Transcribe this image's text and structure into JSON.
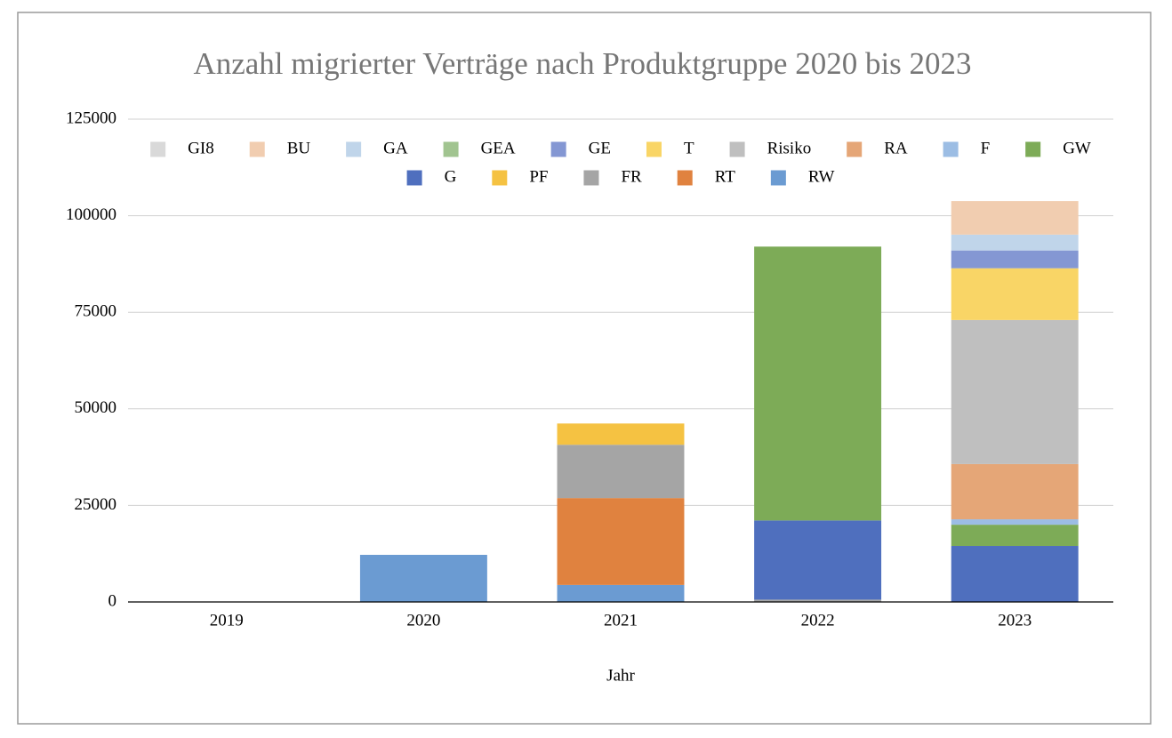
{
  "chart_data": {
    "type": "stacked_bar",
    "title": "Anzahl migrierter Verträge nach Produktgruppe 2020 bis 2023",
    "x_label": "Jahr",
    "categories": [
      "2019",
      "2020",
      "2021",
      "2022",
      "2023"
    ],
    "ylim": [
      0,
      125000
    ],
    "yticks": [
      0,
      25000,
      50000,
      75000,
      100000,
      125000
    ],
    "grid": true,
    "legend": "top",
    "series": [
      {
        "name": "GI8",
        "color": "#d9d9d9",
        "values": [
          0,
          0,
          0,
          0,
          0
        ]
      },
      {
        "name": "BU",
        "color": "#f1cdb0",
        "values": [
          0,
          0,
          0,
          0,
          8700
        ]
      },
      {
        "name": "GA",
        "color": "#c0d5ea",
        "values": [
          0,
          0,
          0,
          0,
          4100
        ]
      },
      {
        "name": "GEA",
        "color": "#a1c490",
        "values": [
          0,
          0,
          0,
          0,
          0
        ]
      },
      {
        "name": "GE",
        "color": "#8497d3",
        "values": [
          0,
          0,
          0,
          0,
          4600
        ]
      },
      {
        "name": "T",
        "color": "#f9d566",
        "values": [
          0,
          0,
          0,
          0,
          13400
        ]
      },
      {
        "name": "Risiko",
        "color": "#bfbfbf",
        "values": [
          0,
          0,
          0,
          0,
          37300
        ]
      },
      {
        "name": "RA",
        "color": "#e5a677",
        "values": [
          0,
          0,
          0,
          0,
          14300
        ]
      },
      {
        "name": "F",
        "color": "#9cbde4",
        "values": [
          0,
          0,
          0,
          0,
          1400
        ]
      },
      {
        "name": "GW",
        "color": "#7dab57",
        "values": [
          0,
          0,
          0,
          70900,
          5500
        ]
      },
      {
        "name": "G",
        "color": "#4f6fbe",
        "values": [
          0,
          0,
          0,
          20500,
          14500
        ]
      },
      {
        "name": "PF",
        "color": "#f5c242",
        "values": [
          0,
          0,
          5500,
          0,
          0
        ]
      },
      {
        "name": "FR",
        "color": "#a5a5a5",
        "values": [
          0,
          0,
          13800,
          600,
          0
        ]
      },
      {
        "name": "RT",
        "color": "#e0823f",
        "values": [
          0,
          0,
          22500,
          0,
          0
        ]
      },
      {
        "name": "RW",
        "color": "#6b9bd2",
        "values": [
          0,
          12200,
          4400,
          0,
          0
        ]
      }
    ]
  }
}
